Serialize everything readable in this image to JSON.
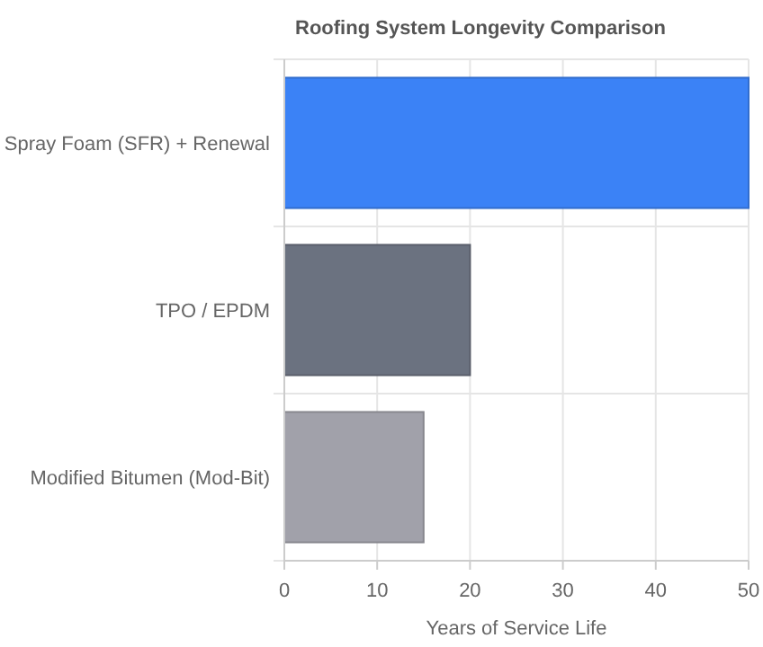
{
  "chart_data": {
    "type": "bar",
    "orientation": "horizontal",
    "title": "Roofing System Longevity Comparison",
    "xlabel": "Years of Service Life",
    "categories": [
      "Spray Foam (SFR) + Renewal",
      "TPO / EPDM",
      "Modified Bitumen (Mod-Bit)"
    ],
    "values": [
      50,
      20,
      15
    ],
    "colors": [
      "#3b82f6",
      "#6b7280",
      "#a1a1aa"
    ],
    "xlim": [
      0,
      50
    ],
    "xticks": [
      0,
      10,
      20,
      30,
      40,
      50
    ],
    "grid": true
  }
}
